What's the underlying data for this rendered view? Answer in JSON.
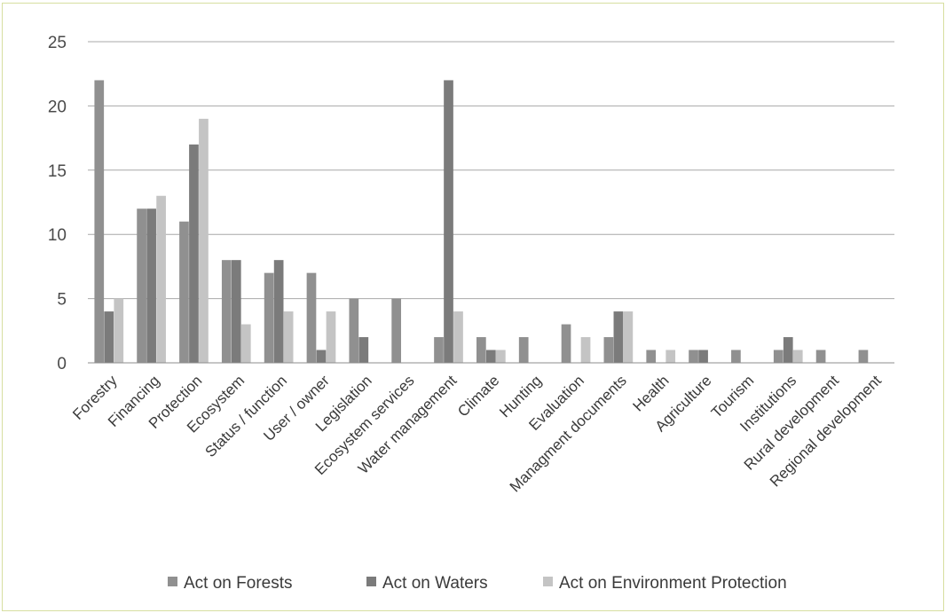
{
  "chart_data": {
    "type": "bar",
    "title": "",
    "xlabel": "",
    "ylabel": "",
    "ylim": [
      0,
      25
    ],
    "yticks": [
      0,
      5,
      10,
      15,
      20,
      25
    ],
    "grid": true,
    "legend_position": "bottom",
    "categories": [
      "Forestry",
      "Financing",
      "Protection",
      "Ecosystem",
      "Status / function",
      "User / owner",
      "Legislation",
      "Ecosystem services",
      "Water management",
      "Climate",
      "Hunting",
      "Evaluation",
      "Managment documents",
      "Health",
      "Agriculture",
      "Tourism",
      "Institutions",
      "Rural development",
      "Regional development"
    ],
    "series": [
      {
        "name": "Act on Forests",
        "color": "#909090",
        "values": [
          22,
          12,
          11,
          8,
          7,
          7,
          5,
          5,
          2,
          2,
          2,
          3,
          2,
          1,
          1,
          1,
          1,
          1,
          1
        ]
      },
      {
        "name": "Act on Waters",
        "color": "#7b7b7b",
        "values": [
          4,
          12,
          17,
          8,
          8,
          1,
          2,
          0,
          22,
          1,
          0,
          0,
          4,
          0,
          1,
          0,
          2,
          0,
          0
        ]
      },
      {
        "name": "Act on Environment Protection",
        "color": "#c4c4c4",
        "values": [
          5,
          13,
          19,
          3,
          4,
          4,
          0,
          0,
          4,
          1,
          0,
          2,
          4,
          1,
          0,
          0,
          1,
          0,
          0
        ]
      }
    ]
  }
}
